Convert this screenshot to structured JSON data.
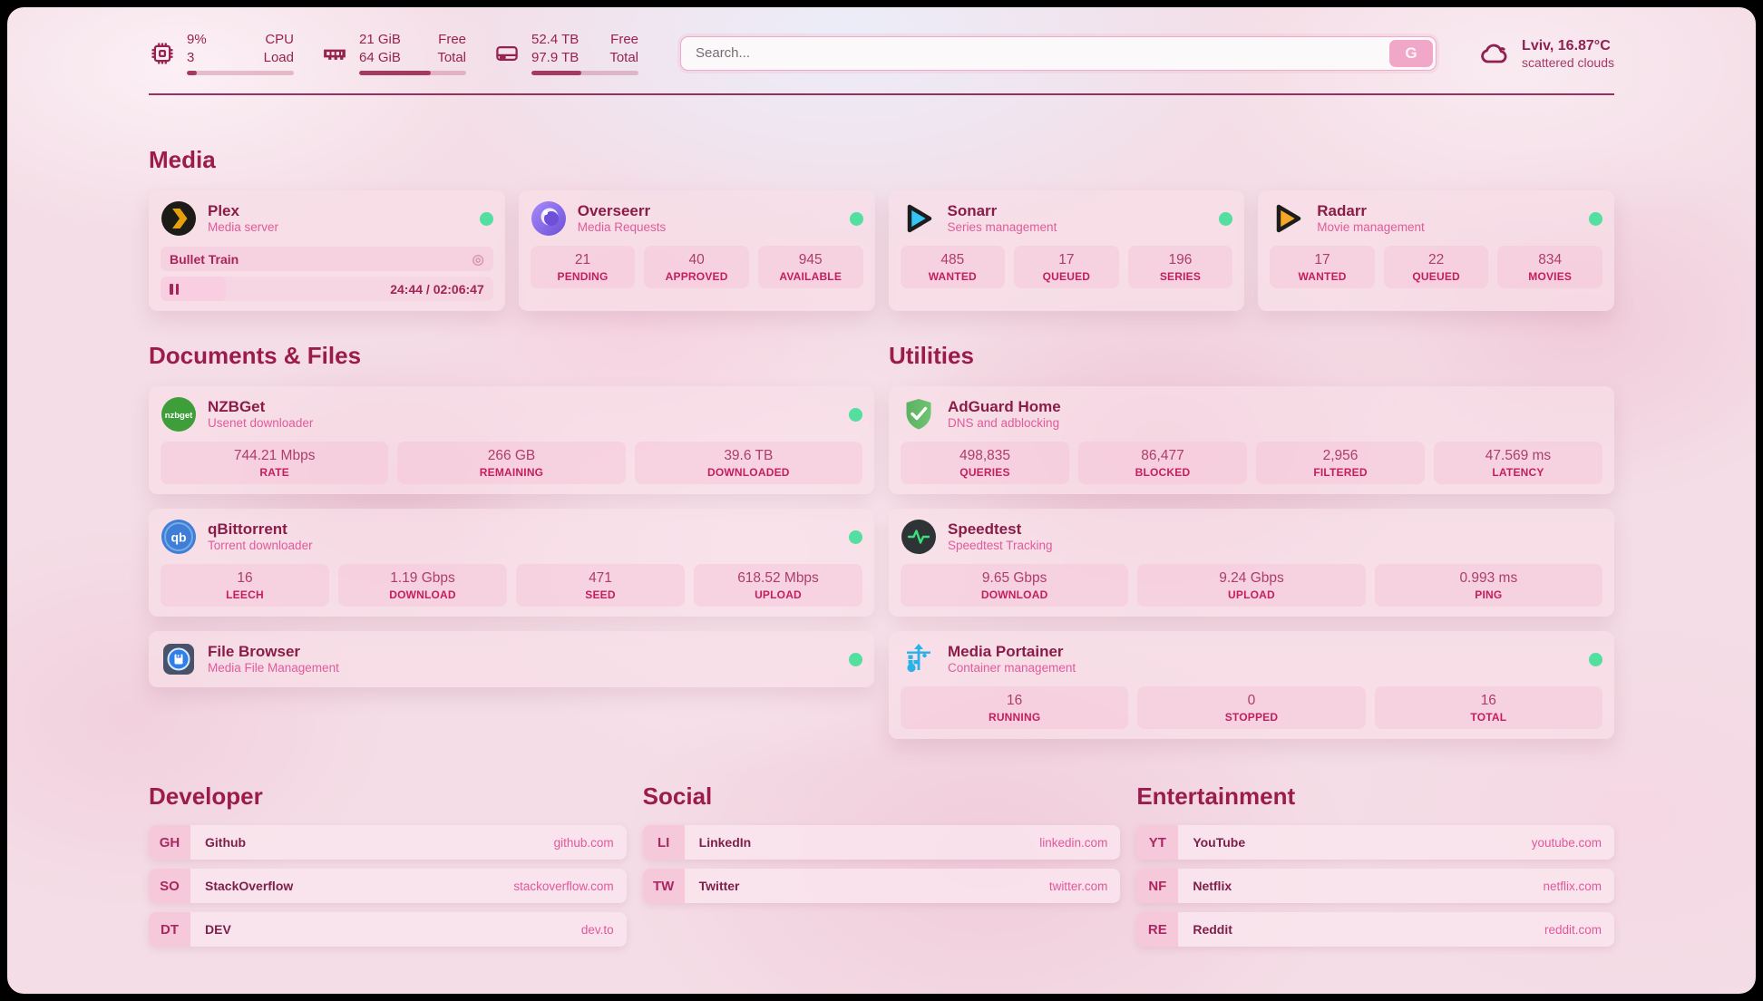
{
  "colors": {
    "accent": "#9b1c4b",
    "subtitle_pink": "#e05b9d",
    "status_online": "#52dfa0"
  },
  "glyphs": {
    "target_icon": "◎"
  },
  "topbar": {
    "cpu": {
      "value_top": "9%",
      "value_bottom": "3",
      "label_top": "CPU",
      "label_bottom": "Load",
      "progress_pct": 9.5
    },
    "ram": {
      "value_top": "21 GiB",
      "value_bottom": "64 GiB",
      "label_top": "Free",
      "label_bottom": "Total",
      "progress_pct": 67
    },
    "disk": {
      "value_top": "52.4 TB",
      "value_bottom": "97.9 TB",
      "label_top": "Free",
      "label_bottom": "Total",
      "progress_pct": 46.5
    },
    "search": {
      "placeholder": "Search...",
      "button_label": "G"
    },
    "weather": {
      "location_temp": "Lviv, 16.87°C",
      "condition": "scattered clouds"
    }
  },
  "sections": {
    "media": "Media",
    "documents": "Documents & Files",
    "utilities": "Utilities",
    "developer": "Developer",
    "social": "Social",
    "entertainment": "Entertainment"
  },
  "apps": {
    "plex": {
      "name": "Plex",
      "desc": "Media server",
      "now_playing": {
        "title": "Bullet Train",
        "time_display": "24:44 / 02:06:47",
        "progress_pct": 19.5
      }
    },
    "overseerr": {
      "name": "Overseerr",
      "desc": "Media Requests",
      "stats": [
        {
          "value": "21",
          "label": "PENDING"
        },
        {
          "value": "40",
          "label": "APPROVED"
        },
        {
          "value": "945",
          "label": "AVAILABLE"
        }
      ]
    },
    "sonarr": {
      "name": "Sonarr",
      "desc": "Series management",
      "stats": [
        {
          "value": "485",
          "label": "WANTED"
        },
        {
          "value": "17",
          "label": "QUEUED"
        },
        {
          "value": "196",
          "label": "SERIES"
        }
      ]
    },
    "radarr": {
      "name": "Radarr",
      "desc": "Movie management",
      "stats": [
        {
          "value": "17",
          "label": "WANTED"
        },
        {
          "value": "22",
          "label": "QUEUED"
        },
        {
          "value": "834",
          "label": "MOVIES"
        }
      ]
    },
    "nzbget": {
      "name": "NZBGet",
      "desc": "Usenet downloader",
      "stats": [
        {
          "value": "744.21 Mbps",
          "label": "RATE"
        },
        {
          "value": "266 GB",
          "label": "REMAINING"
        },
        {
          "value": "39.6 TB",
          "label": "DOWNLOADED"
        }
      ]
    },
    "qbittorrent": {
      "name": "qBittorrent",
      "desc": "Torrent downloader",
      "stats": [
        {
          "value": "16",
          "label": "LEECH"
        },
        {
          "value": "1.19 Gbps",
          "label": "DOWNLOAD"
        },
        {
          "value": "471",
          "label": "SEED"
        },
        {
          "value": "618.52 Mbps",
          "label": "UPLOAD"
        }
      ]
    },
    "filebrowser": {
      "name": "File Browser",
      "desc": "Media File Management"
    },
    "adguard": {
      "name": "AdGuard Home",
      "desc": "DNS and adblocking",
      "stats": [
        {
          "value": "498,835",
          "label": "QUERIES"
        },
        {
          "value": "86,477",
          "label": "BLOCKED"
        },
        {
          "value": "2,956",
          "label": "FILTERED"
        },
        {
          "value": "47.569 ms",
          "label": "LATENCY"
        }
      ]
    },
    "speedtest": {
      "name": "Speedtest",
      "desc": "Speedtest Tracking",
      "stats": [
        {
          "value": "9.65 Gbps",
          "label": "DOWNLOAD"
        },
        {
          "value": "9.24 Gbps",
          "label": "UPLOAD"
        },
        {
          "value": "0.993 ms",
          "label": "PING"
        }
      ]
    },
    "portainer": {
      "name": "Media Portainer",
      "desc": "Container management",
      "stats": [
        {
          "value": "16",
          "label": "RUNNING"
        },
        {
          "value": "0",
          "label": "STOPPED"
        },
        {
          "value": "16",
          "label": "TOTAL"
        }
      ]
    }
  },
  "bookmarks": {
    "developer": {
      "links": [
        {
          "abbr": "GH",
          "label": "Github",
          "domain": "github.com"
        },
        {
          "abbr": "SO",
          "label": "StackOverflow",
          "domain": "stackoverflow.com"
        },
        {
          "abbr": "DT",
          "label": "DEV",
          "domain": "dev.to"
        }
      ]
    },
    "social": {
      "links": [
        {
          "abbr": "LI",
          "label": "LinkedIn",
          "domain": "linkedin.com"
        },
        {
          "abbr": "TW",
          "label": "Twitter",
          "domain": "twitter.com"
        }
      ]
    },
    "entertainment": {
      "links": [
        {
          "abbr": "YT",
          "label": "YouTube",
          "domain": "youtube.com"
        },
        {
          "abbr": "NF",
          "label": "Netflix",
          "domain": "netflix.com"
        },
        {
          "abbr": "RE",
          "label": "Reddit",
          "domain": "reddit.com"
        }
      ]
    }
  }
}
